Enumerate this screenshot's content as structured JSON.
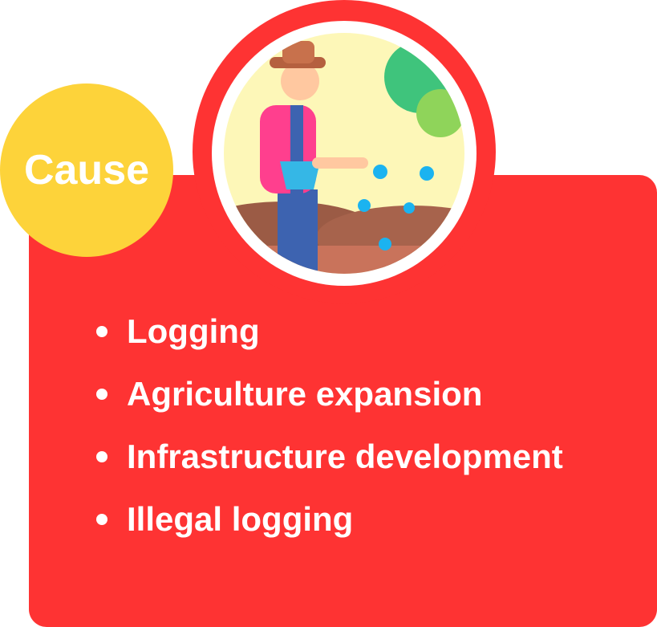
{
  "badge": "Cause",
  "items": [
    "Logging",
    "Agriculture expansion",
    "Infrastructure development",
    "Illegal logging"
  ]
}
